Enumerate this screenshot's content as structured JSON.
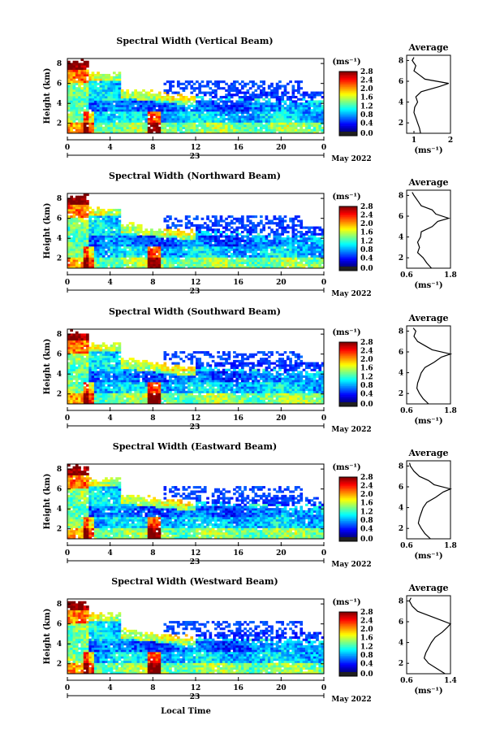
{
  "figure": {
    "type": "radar_spectral_width_panels",
    "colorbar_unit": "(ms⁻¹)",
    "avg_title": "Average",
    "avg_xlabel": "(ms⁻¹)",
    "date_label": "May 2022",
    "day_label": "23",
    "time_label": "Local Time",
    "height_label": "Height (km)",
    "time_ticks": [
      "0",
      "4",
      "8",
      "12",
      "16",
      "20",
      "0"
    ],
    "height_ticks": [
      "2",
      "4",
      "6",
      "8"
    ],
    "colorbar_ticks": [
      "0.0",
      "0.4",
      "0.8",
      "1.2",
      "1.6",
      "2.0",
      "2.4",
      "2.8"
    ],
    "colors": {
      "colormap": [
        "#00007f",
        "#0000ff",
        "#0080ff",
        "#00ffff",
        "#80ff80",
        "#ffff00",
        "#ff8000",
        "#ff0000",
        "#7f0000"
      ],
      "below_min": "#202020"
    }
  },
  "chart_data": [
    {
      "type": "heatmap",
      "title": "Spectral Width (Vertical Beam)",
      "xlabel": "",
      "ylabel": "Height (km)",
      "x_range_hours": [
        0,
        24
      ],
      "y_range_km": [
        1,
        8.5
      ],
      "color_range": [
        0.0,
        2.8
      ],
      "average_profile": {
        "xlim": [
          0.8,
          2.0
        ],
        "xticks": [
          "1",
          "2"
        ],
        "height_km": [
          1.0,
          1.5,
          2.0,
          2.5,
          3.0,
          3.5,
          4.0,
          4.5,
          5.0,
          5.5,
          5.8,
          6.2,
          6.6,
          7.0,
          7.5,
          8.0,
          8.3
        ],
        "width": [
          1.18,
          1.15,
          1.1,
          1.05,
          1.0,
          1.02,
          1.1,
          1.05,
          1.2,
          1.7,
          1.95,
          1.3,
          1.15,
          1.0,
          1.05,
          0.95,
          1.0
        ]
      }
    },
    {
      "type": "heatmap",
      "title": "Spectral Width (Northward Beam)",
      "xlabel": "",
      "ylabel": "Height (km)",
      "x_range_hours": [
        0,
        24
      ],
      "y_range_km": [
        1,
        8.5
      ],
      "color_range": [
        0.0,
        2.8
      ],
      "average_profile": {
        "xlim": [
          0.6,
          1.8
        ],
        "xticks": [
          "0.6",
          "1.8"
        ],
        "height_km": [
          1.0,
          1.5,
          2.0,
          2.5,
          3.0,
          3.5,
          4.0,
          4.5,
          5.0,
          5.5,
          5.8,
          6.2,
          6.6,
          7.0,
          7.5,
          8.0,
          8.3
        ],
        "width": [
          1.28,
          1.15,
          1.05,
          0.9,
          0.95,
          0.9,
          0.98,
          1.0,
          1.3,
          1.45,
          1.75,
          1.4,
          1.3,
          1.0,
          0.9,
          0.8,
          0.75
        ]
      }
    },
    {
      "type": "heatmap",
      "title": "Spectral Width (Southward Beam)",
      "xlabel": "",
      "ylabel": "Height (km)",
      "x_range_hours": [
        0,
        24
      ],
      "y_range_km": [
        1,
        8.5
      ],
      "color_range": [
        0.0,
        2.8
      ],
      "average_profile": {
        "xlim": [
          0.6,
          1.8
        ],
        "xticks": [
          "0.6",
          "1.8"
        ],
        "height_km": [
          1.0,
          1.5,
          2.0,
          2.5,
          3.0,
          3.5,
          4.0,
          4.5,
          5.0,
          5.5,
          5.8,
          6.2,
          6.6,
          7.0,
          7.5,
          8.0,
          8.3
        ],
        "width": [
          1.2,
          1.05,
          0.95,
          0.88,
          0.9,
          0.95,
          1.0,
          1.1,
          1.35,
          1.55,
          1.8,
          1.3,
          1.1,
          0.9,
          0.8,
          0.85,
          0.78
        ]
      }
    },
    {
      "type": "heatmap",
      "title": "Spectral Width (Eastward Beam)",
      "xlabel": "",
      "ylabel": "Height (km)",
      "x_range_hours": [
        0,
        24
      ],
      "y_range_km": [
        1,
        8.5
      ],
      "color_range": [
        0.0,
        2.8
      ],
      "average_profile": {
        "xlim": [
          0.6,
          1.8
        ],
        "xticks": [
          "0.6",
          "1.8"
        ],
        "height_km": [
          1.0,
          1.5,
          2.0,
          2.5,
          3.0,
          3.5,
          4.0,
          4.5,
          5.0,
          5.5,
          5.8,
          6.2,
          6.6,
          7.0,
          7.5,
          8.0,
          8.3
        ],
        "width": [
          1.25,
          1.1,
          1.0,
          0.92,
          0.95,
          1.0,
          1.05,
          1.15,
          1.4,
          1.6,
          1.8,
          1.35,
          1.2,
          0.95,
          0.8,
          0.7,
          0.68
        ]
      }
    },
    {
      "type": "heatmap",
      "title": "Spectral Width (Westward Beam)",
      "xlabel": "Local Time",
      "ylabel": "Height (km)",
      "x_range_hours": [
        0,
        24
      ],
      "y_range_km": [
        1,
        8.5
      ],
      "color_range": [
        0.0,
        2.8
      ],
      "average_profile": {
        "xlim": [
          0.6,
          1.4
        ],
        "xticks": [
          "0.6",
          "1.4"
        ],
        "height_km": [
          1.0,
          1.5,
          2.0,
          2.5,
          3.0,
          3.5,
          4.0,
          4.5,
          5.0,
          5.5,
          5.8,
          6.2,
          6.6,
          7.0,
          7.5,
          8.0,
          8.3
        ],
        "width": [
          1.3,
          1.15,
          1.0,
          0.92,
          0.95,
          1.0,
          1.05,
          1.12,
          1.25,
          1.35,
          1.4,
          1.2,
          1.0,
          0.8,
          0.7,
          0.65,
          0.68
        ]
      }
    }
  ]
}
